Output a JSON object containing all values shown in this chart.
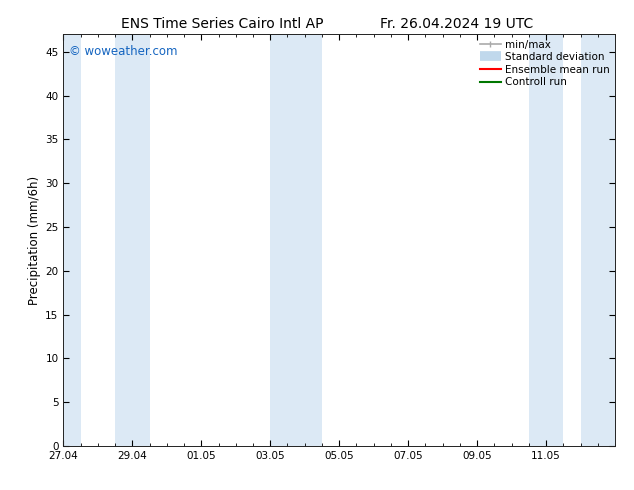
{
  "title_left": "ENS Time Series Cairo Intl AP",
  "title_right": "Fr. 26.04.2024 19 UTC",
  "ylabel": "Precipitation (mm/6h)",
  "xlabel_ticks": [
    "27.04",
    "29.04",
    "01.05",
    "03.05",
    "05.05",
    "07.05",
    "09.05",
    "11.05"
  ],
  "xlim": [
    0,
    16
  ],
  "ylim": [
    0,
    47
  ],
  "yticks": [
    0,
    5,
    10,
    15,
    20,
    25,
    30,
    35,
    40,
    45
  ],
  "background_color": "#ffffff",
  "plot_bg_color": "#ffffff",
  "shaded_bands": [
    {
      "x_start": 0.0,
      "x_end": 0.5,
      "color": "#dce9f5"
    },
    {
      "x_start": 1.5,
      "x_end": 2.5,
      "color": "#dce9f5"
    },
    {
      "x_start": 6.0,
      "x_end": 7.0,
      "color": "#dce9f5"
    },
    {
      "x_start": 7.0,
      "x_end": 7.5,
      "color": "#dce9f5"
    },
    {
      "x_start": 13.5,
      "x_end": 14.5,
      "color": "#dce9f5"
    },
    {
      "x_start": 15.0,
      "x_end": 16.0,
      "color": "#dce9f5"
    }
  ],
  "legend_entries": [
    {
      "label": "min/max",
      "color": "#aaaaaa",
      "lw": 1.2
    },
    {
      "label": "Standard deviation",
      "color": "#c0d8ec",
      "lw": 7
    },
    {
      "label": "Ensemble mean run",
      "color": "#ff0000",
      "lw": 1.5
    },
    {
      "label": "Controll run",
      "color": "#007700",
      "lw": 1.5
    }
  ],
  "watermark": "© woweather.com",
  "watermark_color": "#1565c0",
  "title_fontsize": 10,
  "tick_label_fontsize": 7.5,
  "ylabel_fontsize": 8.5,
  "legend_fontsize": 7.5,
  "x_tick_positions": [
    0,
    2,
    4,
    6,
    8,
    10,
    12,
    14
  ]
}
